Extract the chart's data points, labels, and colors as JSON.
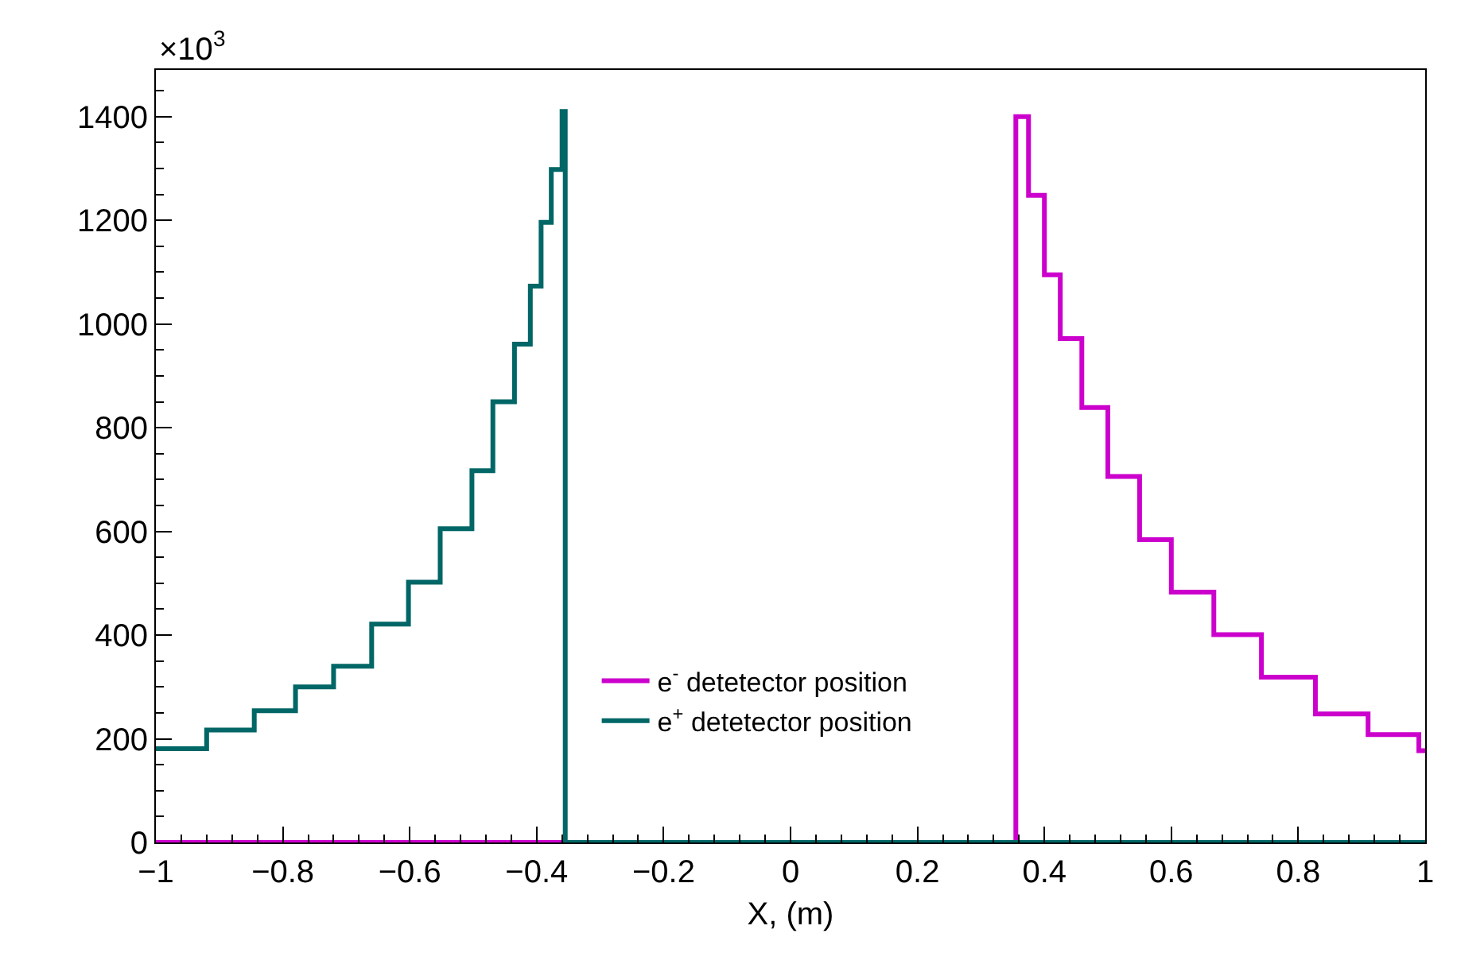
{
  "chart_data": {
    "type": "step",
    "xlabel": "X, (m)",
    "annotations": [
      "×10$^{3}$"
    ],
    "xlim": [
      -1,
      1
    ],
    "xticks": [
      -1,
      -0.8,
      -0.6,
      -0.4,
      -0.2,
      0,
      0.2,
      0.4,
      0.6,
      0.8,
      1
    ],
    "ylim": [
      0,
      1490
    ],
    "yticks": [
      0,
      200,
      400,
      600,
      800,
      1000,
      1200,
      1400
    ],
    "legend": "bottom",
    "series": [
      {
        "name": "e$^{-}$ detetector position",
        "color": "#cc00cc",
        "x": [
          -1,
          0.355,
          0.375,
          0.4,
          0.425,
          0.459,
          0.5,
          0.55,
          0.6,
          0.667,
          0.742,
          0.827,
          0.91,
          0.99,
          1
        ],
        "values": [
          0,
          1400,
          1248,
          1095,
          972,
          839,
          706,
          584,
          483,
          401,
          319,
          248,
          208,
          177,
          177
        ]
      },
      {
        "name": "e$^{+}$ detetector position",
        "color": "#006666",
        "x": [
          -1,
          -0.92,
          -0.845,
          -0.78,
          -0.72,
          -0.66,
          -0.602,
          -0.552,
          -0.502,
          -0.469,
          -0.435,
          -0.41,
          -0.393,
          -0.377,
          -0.36,
          -0.355,
          1
        ],
        "values": [
          181,
          217,
          254,
          300,
          340,
          421,
          502,
          605,
          717,
          850,
          961,
          1073,
          1196,
          1298,
          1410,
          0,
          0
        ]
      }
    ]
  }
}
